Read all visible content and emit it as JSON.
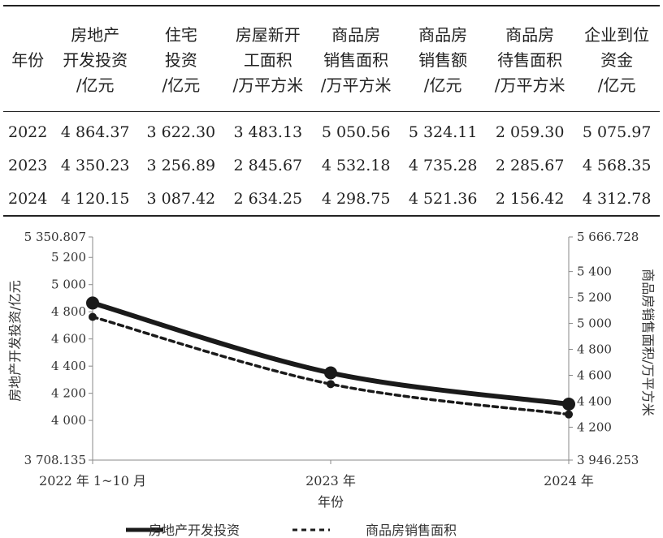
{
  "table": {
    "columns": [
      [
        "年份"
      ],
      [
        "房地产",
        "开发投资",
        "/亿元"
      ],
      [
        "住宅",
        "投资",
        "/亿元"
      ],
      [
        "房屋新开",
        "工面积",
        "/万平方米"
      ],
      [
        "商品房",
        "销售面积",
        "/万平方米"
      ],
      [
        "商品房",
        "销售额",
        "/亿元"
      ],
      [
        "商品房",
        "待售面积",
        "/万平方米"
      ],
      [
        "企业到位",
        "资金",
        "/亿元"
      ]
    ],
    "rows": [
      [
        "2022",
        "4 864.37",
        "3 622.30",
        "3 483.13",
        "5 050.56",
        "5 324.11",
        "2 059.30",
        "5 075.97"
      ],
      [
        "2023",
        "4 350.23",
        "3 256.89",
        "2 845.67",
        "4 532.18",
        "4 735.28",
        "2 285.67",
        "4 568.35"
      ],
      [
        "2024",
        "4 120.15",
        "3 087.42",
        "2 634.25",
        "4 298.75",
        "4 521.36",
        "2 156.42",
        "4 312.78"
      ]
    ]
  },
  "chart_data": {
    "type": "line",
    "title": "",
    "x": [
      "2022 年 1~10 月",
      "2023 年",
      "2024 年"
    ],
    "xlabel": "年份",
    "ylabel_left": "房地产开发投资/亿元",
    "ylabel_right": "商品房销售面积/万平方米",
    "ylim_left": [
      3708.135,
      5350.807
    ],
    "ylim_right": [
      3946.253,
      5666.728
    ],
    "yticks_left": [
      "3 708.135",
      "4 000",
      "4 200",
      "4 400",
      "4 600",
      "4 800",
      "5 000",
      "5 200",
      "5 350.807"
    ],
    "yticks_left_values": [
      3708.135,
      4000,
      4200,
      4400,
      4600,
      4800,
      5000,
      5200,
      5350.807
    ],
    "yticks_right": [
      "3 946.253",
      "4 200",
      "4 400",
      "4 600",
      "4 800",
      "5 000",
      "5 200",
      "5 400",
      "5 666.728"
    ],
    "yticks_right_values": [
      3946.253,
      4200,
      4400,
      4600,
      4800,
      5000,
      5200,
      5400,
      5666.728
    ],
    "series": [
      {
        "name": "房地产开发投资",
        "axis": "left",
        "style": "solid",
        "values": [
          4864.37,
          4350.23,
          4120.15
        ]
      },
      {
        "name": "商品房销售面积",
        "axis": "right",
        "style": "dashed",
        "values": [
          5050.56,
          4532.18,
          4298.75
        ]
      }
    ],
    "legend_position": "bottom",
    "grid": false,
    "colors": {
      "line": "#1a1a1a",
      "axis": "#888888"
    }
  }
}
